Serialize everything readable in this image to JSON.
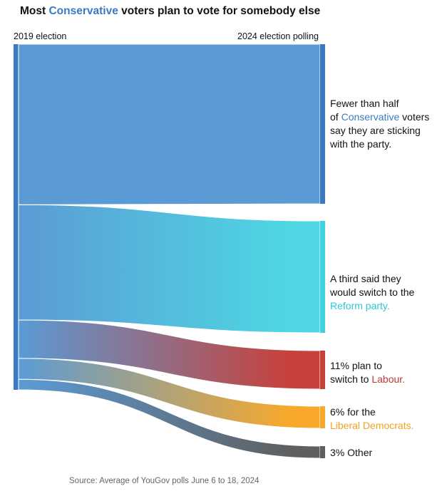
{
  "title": {
    "prefix": "Most ",
    "highlight": "Conservative",
    "suffix": " voters plan to vote for somebody else"
  },
  "left_label": "2019 election",
  "right_label": "2024 election polling",
  "source": "Source: Average of YouGov polls June 6 to 18, 2024",
  "annotations": {
    "conservative": {
      "line1": "Fewer than half",
      "line2_prefix": "of ",
      "line2_highlight": "Conservative",
      "line2_suffix": " voters",
      "line3": "say they are sticking",
      "line4": "with the party."
    },
    "reform": {
      "line1": "A third said they",
      "line2": "would switch to the",
      "line3_highlight": "Reform party."
    },
    "labour": {
      "line1": "11% plan to",
      "line2_prefix": "switch to ",
      "line2_highlight": "Labour."
    },
    "libdem": {
      "line1": "6% for the",
      "line2_highlight": "Liberal Democrats."
    },
    "other": {
      "text": "3% Other"
    }
  },
  "colors": {
    "conservative": "#3a7bbf",
    "conservative_flow": "#5b9bd5",
    "reform": "#4ed7e3",
    "labour": "#c7413a",
    "libdem": "#f8a92b",
    "other": "#5f5f5f"
  },
  "chart_data": {
    "type": "sankey",
    "source_node": "2019 election",
    "target_node": "2024 election polling",
    "flows": [
      {
        "key": "conservative",
        "label": "Conservative",
        "value": 46
      },
      {
        "key": "reform",
        "label": "Reform",
        "value": 33
      },
      {
        "key": "labour",
        "label": "Labour",
        "value": 11
      },
      {
        "key": "libdem",
        "label": "Liberal Democrats",
        "value": 6
      },
      {
        "key": "other",
        "label": "Other",
        "value": 3
      }
    ]
  }
}
